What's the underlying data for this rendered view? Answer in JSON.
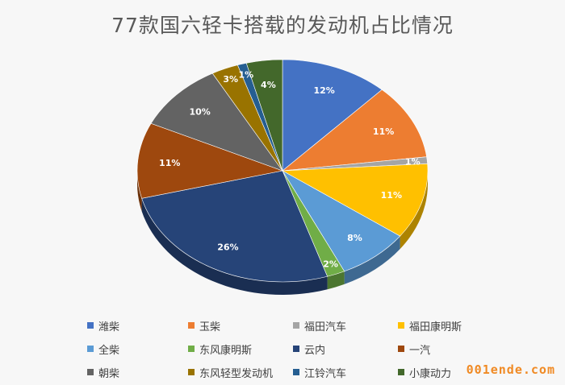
{
  "chart_data": {
    "type": "pie",
    "title": "77款国六轻卡搭载的发动机占比情况",
    "categories": [
      "潍柴",
      "玉柴",
      "福田汽车",
      "福田康明斯",
      "全柴",
      "东风康明斯",
      "云内",
      "一汽",
      "朝柴",
      "东风轻型发动机",
      "江铃汽车",
      "小康动力"
    ],
    "values": [
      12,
      11,
      1,
      11,
      8,
      2,
      26,
      11,
      10,
      3,
      1,
      4
    ],
    "labels": [
      "12%",
      "11%",
      "1%",
      "11%",
      "8%",
      "2%",
      "26%",
      "11%",
      "10%",
      "3%",
      "1%",
      "4%"
    ],
    "colors": [
      "#4472c4",
      "#ed7d31",
      "#a5a5a5",
      "#ffc000",
      "#5b9bd5",
      "#70ad47",
      "#264478",
      "#9e480e",
      "#636363",
      "#997300",
      "#255e91",
      "#43682b"
    ],
    "legend_position": "bottom"
  },
  "watermark": "001ende.com"
}
